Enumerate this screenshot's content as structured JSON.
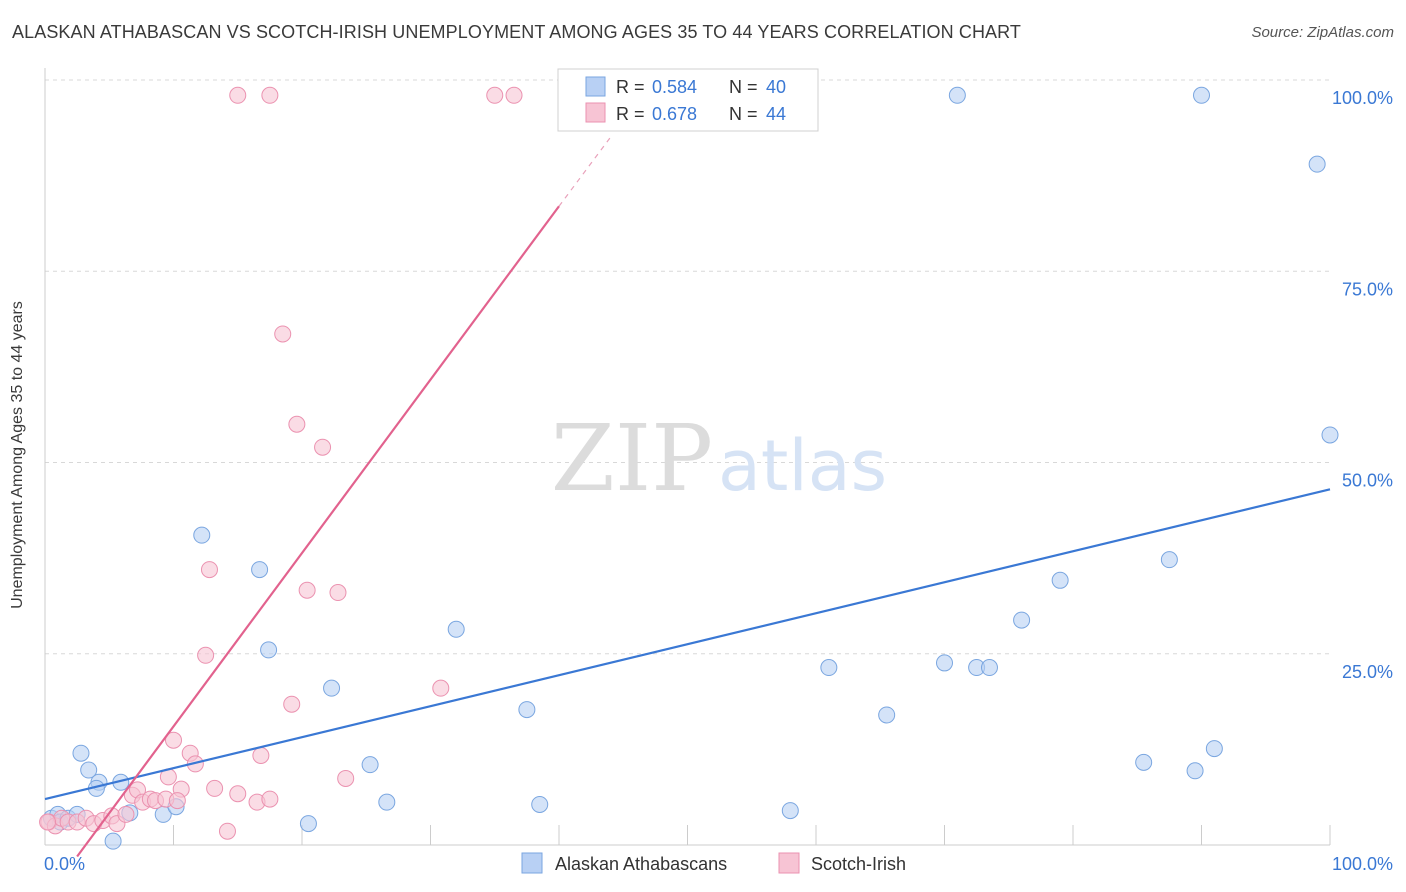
{
  "title": "ALASKAN ATHABASCAN VS SCOTCH-IRISH UNEMPLOYMENT AMONG AGES 35 TO 44 YEARS CORRELATION CHART",
  "source": "Source: ZipAtlas.com",
  "watermark": {
    "zip": "ZIP",
    "atlas": "atlas"
  },
  "colors": {
    "blue_fill": "#b8d0f4",
    "blue_stroke": "#7aa6e0",
    "blue_line": "#3a78d4",
    "pink_fill": "#f7c4d4",
    "pink_stroke": "#eb92b0",
    "pink_line": "#e2628e",
    "axis_text": "#3a78d4",
    "grid": "#d8d8d8"
  },
  "legend": {
    "rows": [
      {
        "r_label": "R =",
        "r_value": "0.584",
        "n_label": "N =",
        "n_value": "40"
      },
      {
        "r_label": "R =",
        "r_value": "0.678",
        "n_label": "N =",
        "n_value": "44"
      }
    ]
  },
  "chart_data": {
    "type": "scatter",
    "title": "ALASKAN ATHABASCAN VS SCOTCH-IRISH UNEMPLOYMENT AMONG AGES 35 TO 44 YEARS CORRELATION CHART",
    "xlabel": "",
    "ylabel": "Unemployment Among Ages 35 to 44 years",
    "xlim": [
      0,
      100
    ],
    "ylim": [
      0,
      100
    ],
    "x_tick_labels": [
      "0.0%",
      "100.0%"
    ],
    "y_ticks": [
      25,
      50,
      75,
      100
    ],
    "y_tick_labels": [
      "25.0%",
      "50.0%",
      "75.0%",
      "100.0%"
    ],
    "legend_position": "top-center",
    "series": [
      {
        "name": "Alaskan Athabascans",
        "color": "#7aa6e0",
        "r": 0.584,
        "n": 40,
        "trend": {
          "x0": 0,
          "y0": 6.0,
          "x1": 100,
          "y1": 46.5,
          "dashed_from": null
        },
        "points": [
          [
            0.5,
            3.5
          ],
          [
            1.0,
            4.0
          ],
          [
            1.2,
            3.0
          ],
          [
            1.8,
            3.5
          ],
          [
            2.5,
            4.0
          ],
          [
            2.8,
            12.0
          ],
          [
            3.4,
            9.8
          ],
          [
            4.2,
            8.2
          ],
          [
            4.0,
            7.4
          ],
          [
            5.3,
            0.5
          ],
          [
            5.9,
            8.2
          ],
          [
            6.6,
            4.2
          ],
          [
            9.2,
            4.0
          ],
          [
            10.2,
            5.0
          ],
          [
            12.2,
            40.5
          ],
          [
            16.7,
            36.0
          ],
          [
            17.4,
            25.5
          ],
          [
            20.5,
            2.8
          ],
          [
            22.3,
            20.5
          ],
          [
            25.3,
            10.5
          ],
          [
            26.6,
            5.6
          ],
          [
            32.0,
            28.2
          ],
          [
            37.5,
            17.7
          ],
          [
            38.5,
            5.3
          ],
          [
            58.0,
            4.5
          ],
          [
            61.0,
            23.2
          ],
          [
            65.5,
            17.0
          ],
          [
            70.0,
            23.8
          ],
          [
            72.5,
            23.2
          ],
          [
            73.5,
            23.2
          ],
          [
            76.0,
            29.4
          ],
          [
            79.0,
            34.6
          ],
          [
            85.5,
            10.8
          ],
          [
            87.5,
            37.3
          ],
          [
            89.5,
            9.7
          ],
          [
            91.0,
            12.6
          ],
          [
            99.0,
            89.0
          ],
          [
            100.0,
            53.6
          ],
          [
            71.0,
            98.0
          ],
          [
            90.0,
            98.0
          ]
        ]
      },
      {
        "name": "Scotch-Irish",
        "color": "#eb92b0",
        "r": 0.678,
        "n": 44,
        "trend": {
          "x0": 2.5,
          "y0": -1.5,
          "x1": 40.0,
          "y1": 83.5,
          "dashed_from": 40.0,
          "dash_to_x": 44.0,
          "dash_to_y": 92.5
        },
        "points": [
          [
            0.3,
            3.0
          ],
          [
            0.8,
            2.5
          ],
          [
            1.3,
            3.5
          ],
          [
            1.8,
            3.0
          ],
          [
            2.5,
            3.0
          ],
          [
            3.2,
            3.5
          ],
          [
            3.8,
            2.8
          ],
          [
            4.5,
            3.2
          ],
          [
            5.2,
            3.8
          ],
          [
            5.6,
            2.8
          ],
          [
            6.3,
            4.0
          ],
          [
            6.8,
            6.5
          ],
          [
            7.2,
            7.2
          ],
          [
            7.6,
            5.6
          ],
          [
            8.2,
            6.0
          ],
          [
            8.6,
            5.8
          ],
          [
            9.4,
            6.0
          ],
          [
            9.6,
            8.9
          ],
          [
            10.0,
            13.7
          ],
          [
            10.6,
            7.3
          ],
          [
            10.3,
            5.8
          ],
          [
            11.3,
            12.0
          ],
          [
            11.7,
            10.6
          ],
          [
            12.5,
            24.8
          ],
          [
            12.8,
            36.0
          ],
          [
            13.2,
            7.4
          ],
          [
            14.2,
            1.8
          ],
          [
            15.0,
            6.7
          ],
          [
            16.5,
            5.6
          ],
          [
            16.8,
            11.7
          ],
          [
            17.5,
            6.0
          ],
          [
            18.5,
            66.8
          ],
          [
            19.6,
            55.0
          ],
          [
            20.4,
            33.3
          ],
          [
            21.6,
            52.0
          ],
          [
            22.8,
            33.0
          ],
          [
            23.4,
            8.7
          ],
          [
            19.2,
            18.4
          ],
          [
            30.8,
            20.5
          ],
          [
            15.0,
            98.0
          ],
          [
            17.5,
            98.0
          ],
          [
            35.0,
            98.0
          ],
          [
            36.5,
            98.0
          ],
          [
            0.2,
            3.0
          ]
        ]
      }
    ]
  }
}
